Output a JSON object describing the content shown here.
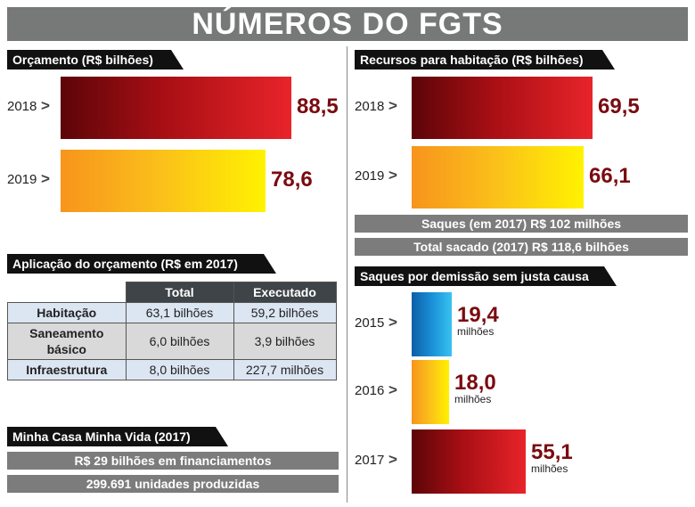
{
  "title": "NÚMEROS DO FGTS",
  "sections": {
    "orcamento": "Orçamento (R$ bilhões)",
    "habitacao": "Recursos para habitação (R$ bilhões)",
    "aplicacao": "Aplicação do orçamento (R$ em 2017)",
    "saques_demissao": "Saques por demissão sem justa causa",
    "mcmv": "Minha Casa Minha Vida (2017)"
  },
  "banners": {
    "saques_2017": "Saques (em 2017) R$ 102 milhões",
    "total_sacado": "Total sacado (2017) R$ 118,6 bilhões",
    "mcmv_financiamentos": "R$ 29 bilhões em financiamentos",
    "mcmv_unidades": "299.691 unidades produzidas"
  },
  "chevron": ">",
  "colors": {
    "bar_red": "#a80f14",
    "bar_yellow": "#fbc11a",
    "bar_blue": "#1a8fd6",
    "value_text": "#7a0b10",
    "banner_grey": "#7c7c7c"
  },
  "chart_data": [
    {
      "type": "bar",
      "title": "Orçamento (R$ bilhões)",
      "categories": [
        "2018",
        "2019"
      ],
      "values": [
        88.5,
        78.6
      ],
      "labels": [
        "88,5",
        "78,6"
      ]
    },
    {
      "type": "bar",
      "title": "Recursos para habitação (R$ bilhões)",
      "categories": [
        "2018",
        "2019"
      ],
      "values": [
        69.5,
        66.1
      ],
      "labels": [
        "69,5",
        "66,1"
      ]
    },
    {
      "type": "bar",
      "title": "Saques por demissão sem justa causa",
      "categories": [
        "2015",
        "2016",
        "2017"
      ],
      "values": [
        19.4,
        18.0,
        55.1
      ],
      "labels": [
        "19,4",
        "18,0",
        "55,1"
      ],
      "unit": "milhões"
    },
    {
      "type": "table",
      "title": "Aplicação do orçamento (R$ em 2017)",
      "columns": [
        "Total",
        "Executado"
      ],
      "rows": [
        {
          "label": "Habitação",
          "total": "63,1 bilhões",
          "executado": "59,2 bilhões"
        },
        {
          "label": "Saneamento básico",
          "total": "6,0 bilhões",
          "executado": "3,9 bilhões"
        },
        {
          "label": "Infraestrutura",
          "total": "8,0 bilhões",
          "executado": "227,7 milhões"
        }
      ]
    }
  ]
}
